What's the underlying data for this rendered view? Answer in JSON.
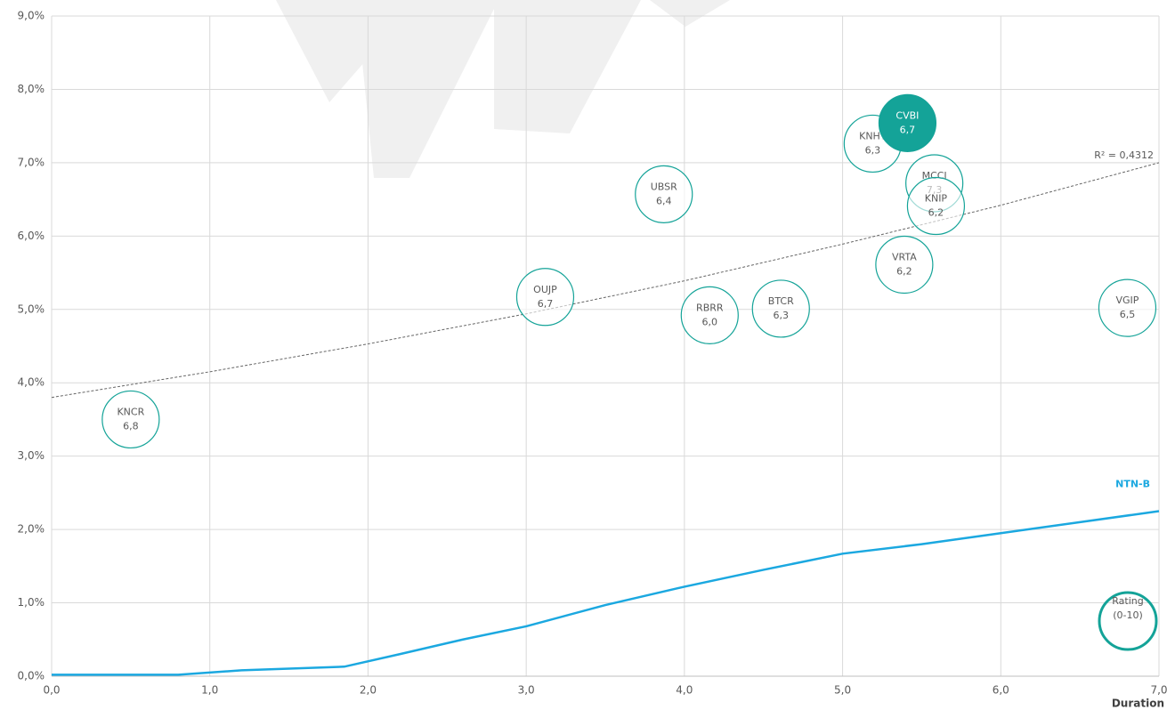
{
  "chart_data": {
    "type": "scatter",
    "x_label": "Duration",
    "xlim": [
      0,
      7
    ],
    "xticks": [
      {
        "value": 0,
        "label": "0,0"
      },
      {
        "value": 1,
        "label": "1,0"
      },
      {
        "value": 2,
        "label": "2,0"
      },
      {
        "value": 3,
        "label": "3,0"
      },
      {
        "value": 4,
        "label": "4,0"
      },
      {
        "value": 5,
        "label": "5,0"
      },
      {
        "value": 6,
        "label": "6,0"
      },
      {
        "value": 7,
        "label": "7,0"
      }
    ],
    "ylim": [
      0,
      9
    ],
    "yticks": [
      {
        "value": 0,
        "label": "0,0%"
      },
      {
        "value": 1,
        "label": "1,0%"
      },
      {
        "value": 2,
        "label": "2,0%"
      },
      {
        "value": 3,
        "label": "3,0%"
      },
      {
        "value": 4,
        "label": "4,0%"
      },
      {
        "value": 5,
        "label": "5,0%"
      },
      {
        "value": 6,
        "label": "6,0%"
      },
      {
        "value": 7,
        "label": "7,0%"
      },
      {
        "value": 8,
        "label": "8,0%"
      },
      {
        "value": 9,
        "label": "9,0%"
      }
    ],
    "grid": true,
    "series": [
      {
        "name": "Rating (0-10)",
        "color": "#14a398",
        "labels": [
          "KNCR",
          "OUJP",
          "UBSR",
          "RBRR",
          "BTCR",
          "KNHY",
          "CVBI",
          "MCCI",
          "KNIP",
          "VRTA",
          "VGIP"
        ],
        "x": [
          0.5,
          3.12,
          3.87,
          4.16,
          4.61,
          5.19,
          5.41,
          5.58,
          5.59,
          5.39,
          6.8
        ],
        "values": [
          3.5,
          5.17,
          6.57,
          4.92,
          5.01,
          7.26,
          7.54,
          6.72,
          6.41,
          5.61,
          5.02
        ],
        "ratings": [
          6.8,
          6.7,
          6.4,
          6.0,
          6.3,
          6.3,
          6.7,
          7.3,
          6.2,
          6.2,
          6.5
        ],
        "rating_labels": [
          "6,8",
          "6,7",
          "6,4",
          "6,0",
          "6,3",
          "6,3",
          "6,7",
          "7,3",
          "6,2",
          "6,2",
          "6,5"
        ],
        "filled": [
          false,
          false,
          false,
          false,
          false,
          false,
          true,
          false,
          false,
          false,
          false
        ]
      },
      {
        "name": "NTN-B",
        "color": "#1ba8e0",
        "type": "line",
        "x": [
          0,
          0.8,
          1.2,
          1.85,
          2.2,
          2.6,
          3.0,
          3.5,
          4.0,
          4.5,
          5.0,
          5.5,
          6.0,
          6.5,
          7.0
        ],
        "values": [
          0.02,
          0.02,
          0.08,
          0.13,
          0.3,
          0.5,
          0.68,
          0.97,
          1.22,
          1.45,
          1.67,
          1.8,
          1.95,
          2.1,
          2.25
        ]
      }
    ],
    "trendline": {
      "label": "R² = 0,4312",
      "color": "#666",
      "x": [
        0,
        1,
        2,
        3,
        4,
        5,
        6,
        7
      ],
      "values": [
        3.8,
        4.15,
        4.53,
        4.94,
        5.39,
        5.89,
        6.42,
        7.0
      ]
    }
  }
}
